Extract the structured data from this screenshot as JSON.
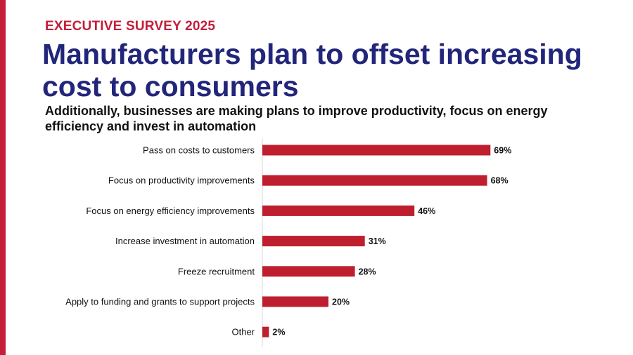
{
  "colors": {
    "accent_red": "#c41e3a",
    "bar": "#be1e2d",
    "headline_navy": "#22267a",
    "axis": "#d9d9d9"
  },
  "header": {
    "eyebrow": "EXECUTIVE SURVEY 2025",
    "title": "Manufacturers plan to offset increasing cost to consumers",
    "subtitle": "Additionally, businesses are making plans to improve productivity, focus on energy efficiency and invest in automation"
  },
  "chart_data": {
    "type": "bar",
    "orientation": "horizontal",
    "categories": [
      "Pass on costs to customers",
      "Focus on productivity improvements",
      "Focus on energy efficiency improvements",
      "Increase investment in automation",
      "Freeze recruitment",
      "Apply to funding and grants to support projects",
      "Other"
    ],
    "values": [
      69,
      68,
      46,
      31,
      28,
      20,
      2
    ],
    "value_labels": [
      "69%",
      "68%",
      "46%",
      "31%",
      "28%",
      "20%",
      "2%"
    ],
    "unit": "%",
    "xlim": [
      0,
      100
    ],
    "grid": false,
    "legend": "none"
  }
}
